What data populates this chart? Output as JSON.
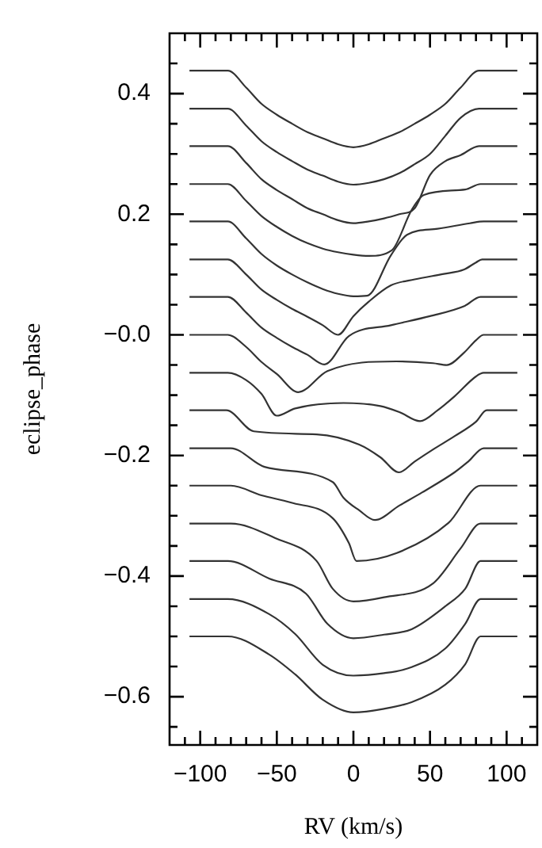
{
  "chart_data": {
    "type": "line",
    "xlabel": "RV (km/s)",
    "ylabel": "eclipse_phase",
    "xlim": [
      -120,
      120
    ],
    "ylim": [
      -0.68,
      0.5
    ],
    "xticks": [
      {
        "value": -100,
        "label": "−100"
      },
      {
        "value": -50,
        "label": "−50"
      },
      0,
      50,
      100,
      {
        "value": -110,
        "label": null
      },
      {
        "value": -90,
        "label": null
      },
      {
        "value": -80,
        "label": null
      },
      {
        "value": -70,
        "label": null
      },
      {
        "value": -60,
        "label": null
      },
      {
        "value": -40,
        "label": null
      },
      {
        "value": -30,
        "label": null
      },
      {
        "value": -20,
        "label": null
      },
      {
        "value": -10,
        "label": null
      },
      {
        "value": 10,
        "label": null
      },
      {
        "value": 20,
        "label": null
      },
      {
        "value": 30,
        "label": null
      },
      {
        "value": 40,
        "label": null
      },
      {
        "value": 60,
        "label": null
      },
      {
        "value": 70,
        "label": null
      },
      {
        "value": 80,
        "label": null
      },
      {
        "value": 90,
        "label": null
      },
      {
        "value": 110,
        "label": null
      }
    ],
    "yticks": [
      0.4,
      0.2,
      {
        "value": 0,
        "label": "−0.0"
      },
      {
        "value": -0.2,
        "label": "−0.2"
      },
      {
        "value": -0.4,
        "label": "−0.4"
      },
      {
        "value": -0.6,
        "label": "−0.6"
      },
      {
        "value": 0.45,
        "label": null
      },
      {
        "value": 0.35,
        "label": null
      },
      {
        "value": 0.3,
        "label": null
      },
      {
        "value": 0.25,
        "label": null
      },
      {
        "value": 0.15,
        "label": null
      },
      {
        "value": 0.1,
        "label": null
      },
      {
        "value": 0.05,
        "label": null
      },
      {
        "value": -0.05,
        "label": null
      },
      {
        "value": -0.1,
        "label": null
      },
      {
        "value": -0.15,
        "label": null
      },
      {
        "value": -0.25,
        "label": null
      },
      {
        "value": -0.3,
        "label": null
      },
      {
        "value": -0.35,
        "label": null
      },
      {
        "value": -0.45,
        "label": null
      },
      {
        "value": -0.5,
        "label": null
      },
      {
        "value": -0.55,
        "label": null
      },
      {
        "value": -0.65,
        "label": null
      }
    ],
    "series": [
      {
        "color": "#333333",
        "x": [
          -107,
          -82,
          -70,
          -60,
          -50,
          -40,
          -30,
          -20,
          -10,
          0,
          10,
          20,
          30,
          40,
          50,
          60,
          70,
          82,
          107
        ],
        "values": [
          0.438,
          0.438,
          0.41,
          0.383,
          0.365,
          0.35,
          0.336,
          0.326,
          0.316,
          0.311,
          0.316,
          0.326,
          0.336,
          0.35,
          0.365,
          0.383,
          0.41,
          0.438,
          0.438
        ]
      },
      {
        "color": "#333333",
        "x": [
          -107,
          -82,
          -70,
          -60,
          -50,
          -40,
          -30,
          -20,
          -10,
          0,
          10,
          20,
          30,
          40,
          50,
          60,
          70,
          82,
          107
        ],
        "values": [
          0.375,
          0.375,
          0.347,
          0.321,
          0.303,
          0.288,
          0.274,
          0.264,
          0.254,
          0.249,
          0.252,
          0.258,
          0.268,
          0.283,
          0.3,
          0.33,
          0.36,
          0.375,
          0.375
        ]
      },
      {
        "color": "#333333",
        "x": [
          -107,
          -82,
          -70,
          -60,
          -50,
          -40,
          -30,
          -20,
          -10,
          0,
          10,
          20,
          30,
          40,
          50,
          60,
          70,
          82,
          107
        ],
        "values": [
          0.313,
          0.313,
          0.285,
          0.258,
          0.24,
          0.225,
          0.21,
          0.2,
          0.19,
          0.185,
          0.188,
          0.193,
          0.2,
          0.21,
          0.265,
          0.288,
          0.298,
          0.313,
          0.313
        ]
      },
      {
        "color": "#333333",
        "x": [
          -107,
          -82,
          -70,
          -60,
          -50,
          -40,
          -30,
          -20,
          -10,
          0,
          10,
          25,
          38,
          46,
          73,
          83,
          107
        ],
        "values": [
          0.25,
          0.25,
          0.222,
          0.197,
          0.179,
          0.164,
          0.152,
          0.143,
          0.137,
          0.133,
          0.131,
          0.14,
          0.207,
          0.232,
          0.241,
          0.25,
          0.25
        ]
      },
      {
        "color": "#333333",
        "x": [
          -107,
          -82,
          -70,
          -60,
          -50,
          -40,
          -30,
          -20,
          -10,
          0,
          9,
          24.5,
          35,
          55,
          76,
          85,
          107
        ],
        "values": [
          0.188,
          0.188,
          0.16,
          0.134,
          0.115,
          0.1,
          0.087,
          0.076,
          0.068,
          0.064,
          0.065,
          0.132,
          0.166,
          0.176,
          0.185,
          0.188,
          0.188
        ]
      },
      {
        "color": "#333333",
        "x": [
          -107,
          -82,
          -70,
          -60,
          -50,
          -40,
          -30,
          -20,
          -10,
          0,
          10,
          24.5,
          40,
          59,
          72,
          80,
          84,
          107
        ],
        "values": [
          0.125,
          0.125,
          0.1,
          0.075,
          0.058,
          0.043,
          0.03,
          0.016,
          0.0,
          0.031,
          0.055,
          0.082,
          0.092,
          0.101,
          0.108,
          0.12,
          0.125,
          0.125
        ]
      },
      {
        "color": "#333333",
        "x": [
          -107,
          -82,
          -70,
          -60,
          -50,
          -40,
          -30,
          -19,
          -3,
          24.5,
          50,
          72.7,
          83,
          107
        ],
        "values": [
          0.063,
          0.063,
          0.037,
          0.012,
          -0.005,
          -0.02,
          -0.033,
          -0.049,
          -0.002,
          0.016,
          0.031,
          0.048,
          0.063,
          0.063
        ]
      },
      {
        "color": "#333333",
        "x": [
          -107,
          -82,
          -70,
          -60,
          -50,
          -36,
          -17,
          28,
          52,
          61,
          72,
          80,
          85,
          107
        ],
        "values": [
          0,
          0,
          -0.02,
          -0.045,
          -0.065,
          -0.095,
          -0.06,
          -0.044,
          -0.047,
          -0.05,
          -0.03,
          -0.009,
          0,
          0
        ]
      },
      {
        "color": "#333333",
        "x": [
          -107,
          -82,
          -70,
          -60,
          -50,
          -38,
          -6.5,
          17.6,
          30,
          43.5,
          55,
          66,
          80,
          85,
          107
        ],
        "values": [
          -0.063,
          -0.063,
          -0.075,
          -0.098,
          -0.134,
          -0.122,
          -0.113,
          -0.118,
          -0.128,
          -0.143,
          -0.125,
          -0.102,
          -0.069,
          -0.063,
          -0.063
        ]
      },
      {
        "color": "#333333",
        "x": [
          -107,
          -83,
          -65,
          -24,
          3.8,
          17.6,
          29.7,
          40,
          52,
          66,
          80,
          87,
          107
        ],
        "values": [
          -0.125,
          -0.125,
          -0.16,
          -0.165,
          -0.182,
          -0.203,
          -0.228,
          -0.21,
          -0.19,
          -0.168,
          -0.144,
          -0.125,
          -0.125
        ]
      },
      {
        "color": "#333333",
        "x": [
          -107,
          -80,
          -58,
          -13.5,
          -6.5,
          3.8,
          14,
          30,
          45,
          66,
          75,
          85,
          107
        ],
        "values": [
          -0.188,
          -0.188,
          -0.219,
          -0.244,
          -0.27,
          -0.291,
          -0.307,
          -0.283,
          -0.261,
          -0.228,
          -0.21,
          -0.188,
          -0.188
        ]
      },
      {
        "color": "#333333",
        "x": [
          -107,
          -80,
          -60,
          -41,
          -13.5,
          -3,
          2,
          28,
          62,
          83,
          107
        ],
        "values": [
          -0.25,
          -0.25,
          -0.266,
          -0.278,
          -0.304,
          -0.345,
          -0.375,
          -0.362,
          -0.312,
          -0.25,
          -0.25
        ]
      },
      {
        "color": "#333333",
        "x": [
          -107,
          -80,
          -51,
          -24,
          -13.5,
          0,
          20,
          52,
          70,
          83,
          107
        ],
        "values": [
          -0.313,
          -0.313,
          -0.337,
          -0.375,
          -0.421,
          -0.442,
          -0.435,
          -0.412,
          -0.354,
          -0.313,
          -0.313
        ]
      },
      {
        "color": "#333333",
        "x": [
          -107,
          -82,
          -55,
          -31,
          -17,
          0,
          20,
          38,
          60,
          73,
          83,
          107
        ],
        "values": [
          -0.375,
          -0.375,
          -0.404,
          -0.429,
          -0.479,
          -0.503,
          -0.497,
          -0.488,
          -0.45,
          -0.421,
          -0.375,
          -0.375
        ]
      },
      {
        "color": "#333333",
        "x": [
          -107,
          -82,
          -55,
          -38,
          -20,
          0,
          20,
          38,
          60,
          73,
          83,
          107
        ],
        "values": [
          -0.438,
          -0.438,
          -0.463,
          -0.496,
          -0.547,
          -0.565,
          -0.561,
          -0.551,
          -0.52,
          -0.479,
          -0.438,
          -0.438
        ]
      },
      {
        "color": "#333333",
        "x": [
          -107,
          -82,
          -55,
          -38,
          -20,
          0,
          20,
          38,
          60,
          73,
          83,
          107
        ],
        "values": [
          -0.5,
          -0.5,
          -0.53,
          -0.563,
          -0.605,
          -0.626,
          -0.62,
          -0.609,
          -0.58,
          -0.546,
          -0.5,
          -0.5
        ]
      }
    ]
  }
}
